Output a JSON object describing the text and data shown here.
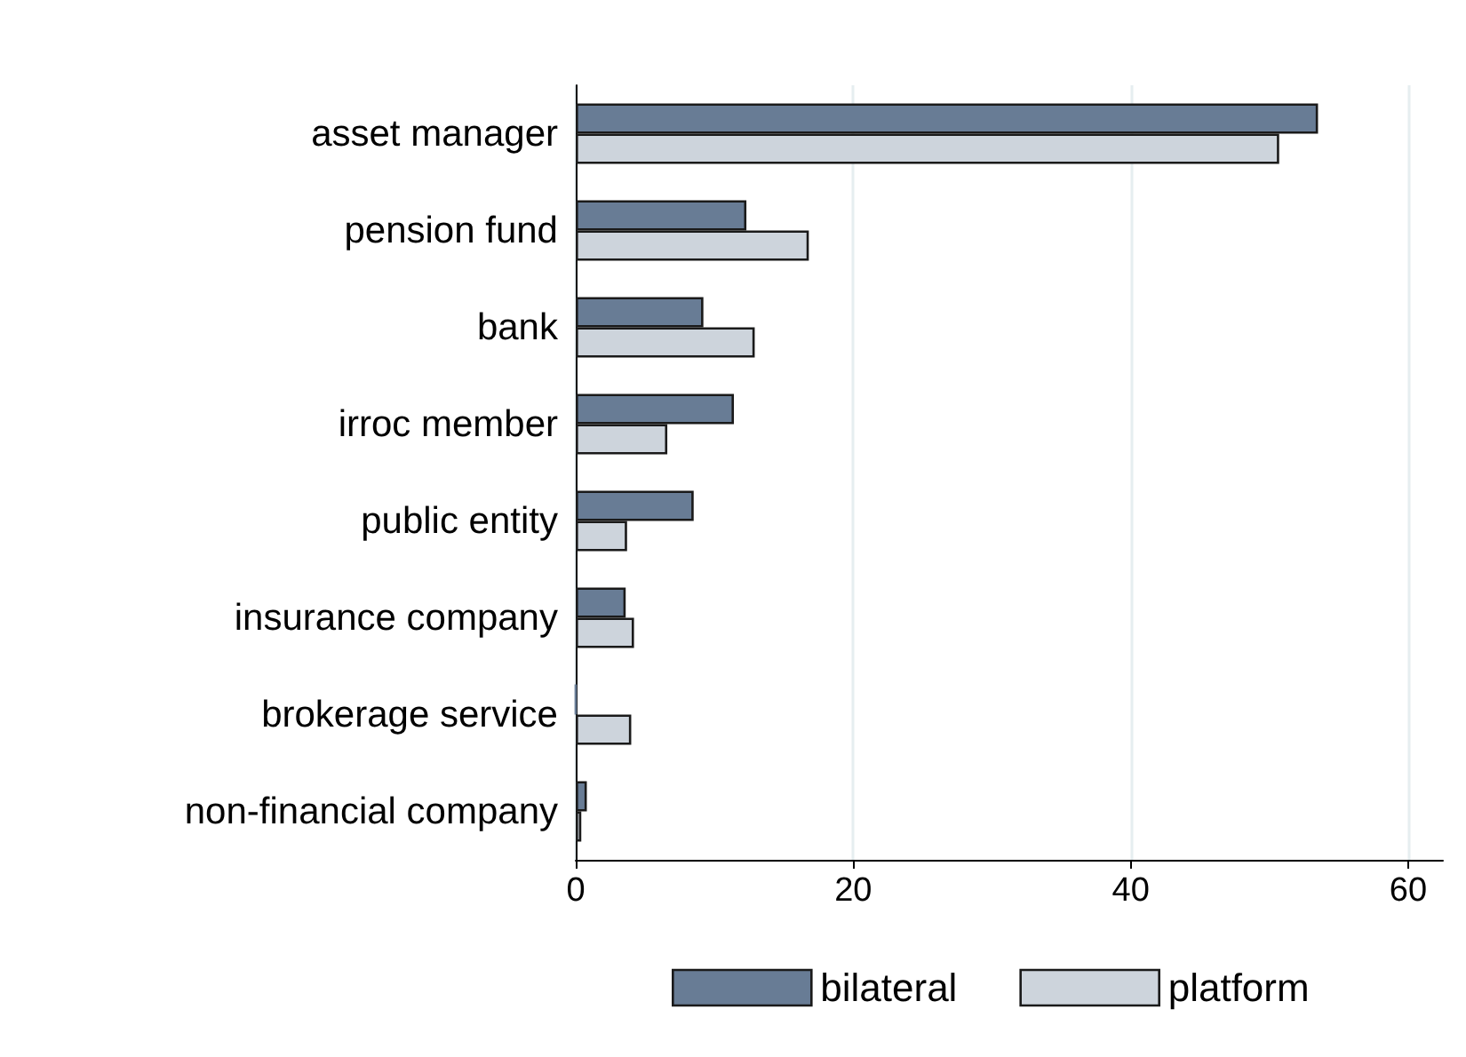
{
  "chart_data": {
    "type": "bar",
    "orientation": "horizontal",
    "categories": [
      "asset manager",
      "pension fund",
      "bank",
      "irroc member",
      "public entity",
      "insurance company",
      "brokerage service",
      "non-financial company"
    ],
    "series": [
      {
        "name": "bilateral",
        "color": "#687c95",
        "values": [
          53.5,
          12.3,
          9.2,
          11.4,
          8.5,
          3.6,
          0,
          0.8
        ]
      },
      {
        "name": "platform",
        "color": "#cdd4dc",
        "values": [
          50.7,
          16.8,
          12.9,
          6.6,
          3.7,
          4.2,
          4.0,
          0.4
        ]
      }
    ],
    "xlim": [
      0,
      62.5
    ],
    "xticks": [
      0,
      20,
      40,
      60
    ],
    "grid": "x",
    "legend": "bottom"
  }
}
